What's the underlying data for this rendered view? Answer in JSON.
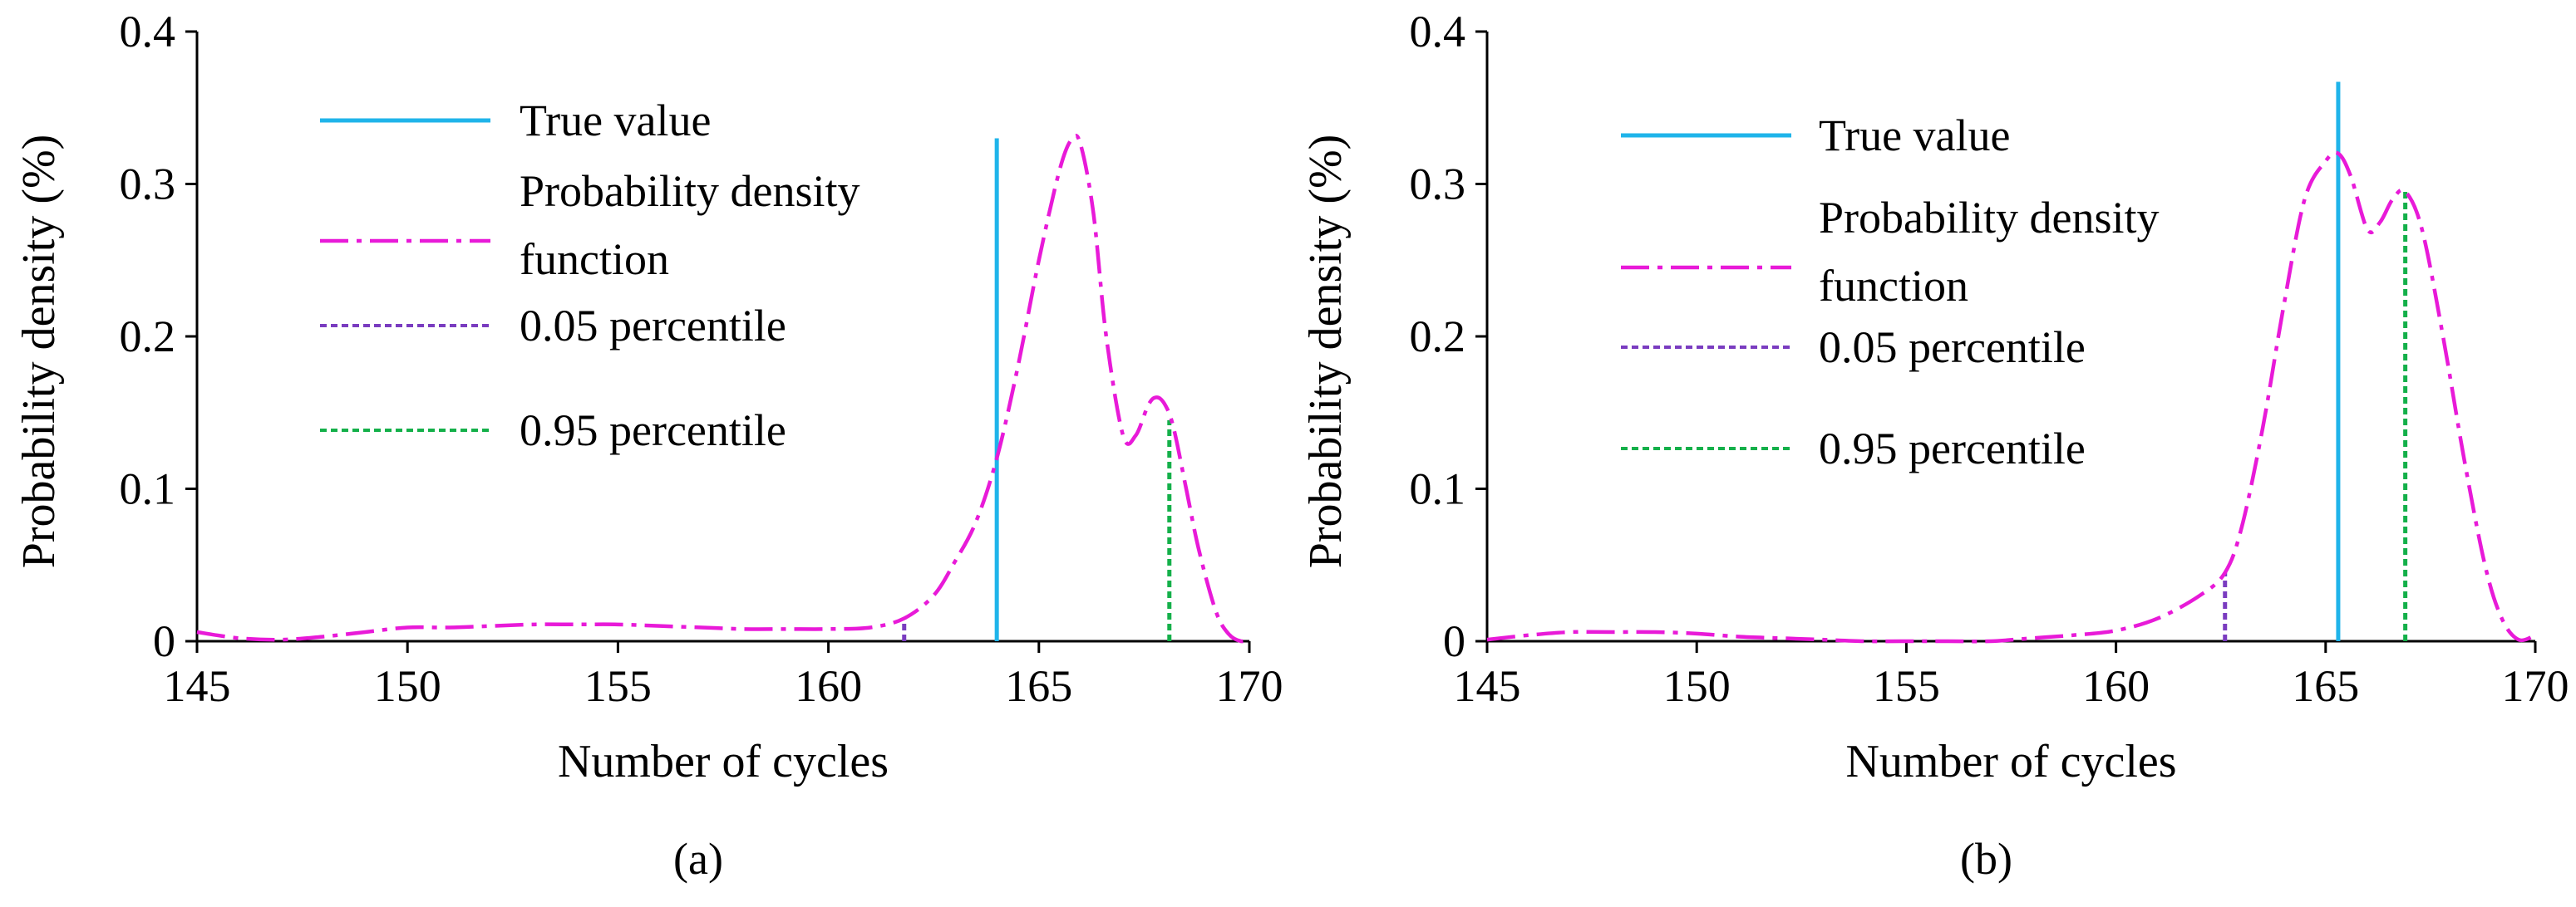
{
  "chart_data": [
    {
      "type": "line",
      "panel_label": "(a)",
      "xlabel": "Number of cycles",
      "ylabel": "Probability density (%)",
      "xlim": [
        145,
        170
      ],
      "ylim": [
        0,
        0.4
      ],
      "x_ticks": [
        145,
        150,
        155,
        160,
        165,
        170
      ],
      "x_tick_labels": [
        "145",
        "150",
        "155",
        "160",
        "165",
        "170"
      ],
      "y_ticks": [
        0,
        0.1,
        0.2,
        0.3,
        0.4
      ],
      "y_tick_labels": [
        "0",
        "0.1",
        "0.2",
        "0.3",
        "0.4"
      ],
      "legend": [
        {
          "key": "true_value",
          "label": "True value"
        },
        {
          "key": "pdf",
          "label": "Probability density function"
        },
        {
          "key": "p05",
          "label": "0.05 percentile"
        },
        {
          "key": "p95",
          "label": "0.95 percentile"
        }
      ],
      "legend_position": "top-center",
      "colors": {
        "true_value": "#1fb4ea",
        "pdf": "#e81ad8",
        "p05": "#7a3cc0",
        "p95": "#14b04a"
      },
      "pdf": {
        "x": [
          145,
          146,
          147,
          148,
          149,
          150,
          151,
          152,
          153,
          154,
          155,
          156,
          157,
          158,
          159,
          160,
          161,
          161.8,
          162.5,
          163,
          163.5,
          164,
          164.5,
          165,
          165.5,
          165.8,
          166,
          166.3,
          166.6,
          167,
          167.3,
          167.6,
          167.8,
          168,
          168.2,
          168.5,
          168.8,
          169.2,
          169.5,
          169.8,
          170
        ],
        "y": [
          0.006,
          0.002,
          0.001,
          0.003,
          0.006,
          0.009,
          0.009,
          0.01,
          0.011,
          0.011,
          0.011,
          0.01,
          0.009,
          0.008,
          0.008,
          0.008,
          0.009,
          0.015,
          0.03,
          0.052,
          0.078,
          0.12,
          0.18,
          0.25,
          0.31,
          0.33,
          0.325,
          0.28,
          0.2,
          0.135,
          0.135,
          0.155,
          0.16,
          0.155,
          0.14,
          0.1,
          0.06,
          0.02,
          0.005,
          0.0,
          0.002
        ]
      },
      "true_value": {
        "x": 164,
        "y_top": 0.33
      },
      "percentile_05": {
        "x": 161.8,
        "y_top": 0.015
      },
      "percentile_95": {
        "x": 168.1,
        "y_top": 0.145
      }
    },
    {
      "type": "line",
      "panel_label": "(b)",
      "xlabel": "Number of cycles",
      "ylabel": "Probability density (%)",
      "xlim": [
        145,
        170
      ],
      "ylim": [
        0,
        0.4
      ],
      "x_ticks": [
        145,
        150,
        155,
        160,
        165,
        170
      ],
      "x_tick_labels": [
        "145",
        "150",
        "155",
        "160",
        "165",
        "170"
      ],
      "y_ticks": [
        0,
        0.1,
        0.2,
        0.3,
        0.4
      ],
      "y_tick_labels": [
        "0",
        "0.1",
        "0.2",
        "0.3",
        "0.4"
      ],
      "legend": [
        {
          "key": "true_value",
          "label": "True value"
        },
        {
          "key": "pdf",
          "label": "Probability density function"
        },
        {
          "key": "p05",
          "label": "0.05 percentile"
        },
        {
          "key": "p95",
          "label": "0.95 percentile"
        }
      ],
      "legend_position": "top-center",
      "colors": {
        "true_value": "#1fb4ea",
        "pdf": "#e81ad8",
        "p05": "#7a3cc0",
        "p95": "#14b04a"
      },
      "pdf": {
        "x": [
          145,
          146,
          147,
          148,
          149,
          150,
          151,
          152,
          153,
          154,
          155,
          156,
          157,
          158,
          159,
          160,
          161,
          162,
          162.6,
          163,
          163.5,
          164,
          164.5,
          165,
          165.3,
          165.6,
          166,
          166.3,
          166.6,
          166.9,
          167.3,
          167.8,
          168.3,
          168.8,
          169.2,
          169.6,
          170
        ],
        "y": [
          0.001,
          0.004,
          0.006,
          0.006,
          0.006,
          0.005,
          0.003,
          0.002,
          0.001,
          0.0,
          0.0,
          0.0,
          0.0,
          0.002,
          0.004,
          0.007,
          0.015,
          0.03,
          0.045,
          0.075,
          0.14,
          0.22,
          0.29,
          0.315,
          0.32,
          0.305,
          0.27,
          0.275,
          0.29,
          0.295,
          0.27,
          0.2,
          0.12,
          0.05,
          0.015,
          0.001,
          0.004
        ]
      },
      "true_value": {
        "x": 165.3,
        "y_top": 0.367
      },
      "percentile_05": {
        "x": 162.6,
        "y_top": 0.045
      },
      "percentile_95": {
        "x": 166.9,
        "y_top": 0.295
      }
    }
  ]
}
